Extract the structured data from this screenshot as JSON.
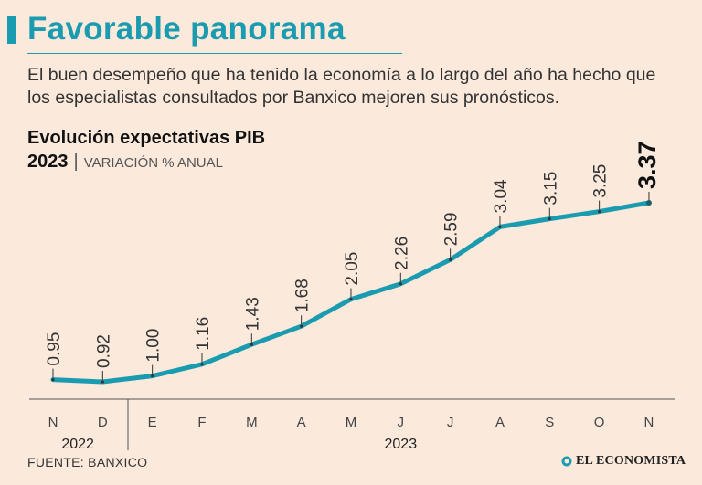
{
  "header": {
    "title": "Favorable panorama",
    "subtitle": "El buen desempeño que ha tenido la economía a lo largo del año ha hecho que los especialistas consultados por Banxico mejoren sus pronósticos."
  },
  "footer": {
    "source": "FUENTE: BANXICO",
    "logo_text": "EL ECONOMISTA"
  },
  "colors": {
    "accent": "#1a9bb0",
    "background": "#fbe9dc"
  },
  "chart_data": {
    "type": "line",
    "title": "Evolución expectativas PIB",
    "year_label": "2023",
    "unit_separator": "|",
    "unit_label": "VARIACIÓN % ANUAL",
    "categories": [
      "N",
      "D",
      "E",
      "F",
      "M",
      "A",
      "M",
      "J",
      "J",
      "A",
      "S",
      "O",
      "N"
    ],
    "year_groups": [
      "2022",
      "2023"
    ],
    "values": [
      0.95,
      0.92,
      1.0,
      1.16,
      1.43,
      1.68,
      2.05,
      2.26,
      2.59,
      3.04,
      3.15,
      3.25,
      3.37
    ],
    "labels": [
      "0.95",
      "0.92",
      "1.00",
      "1.16",
      "1.43",
      "1.68",
      "2.05",
      "2.26",
      "2.59",
      "3.04",
      "3.15",
      "3.25",
      "3.37"
    ],
    "xlabel": "",
    "ylabel": "",
    "ylim": [
      0.7,
      3.6
    ]
  }
}
